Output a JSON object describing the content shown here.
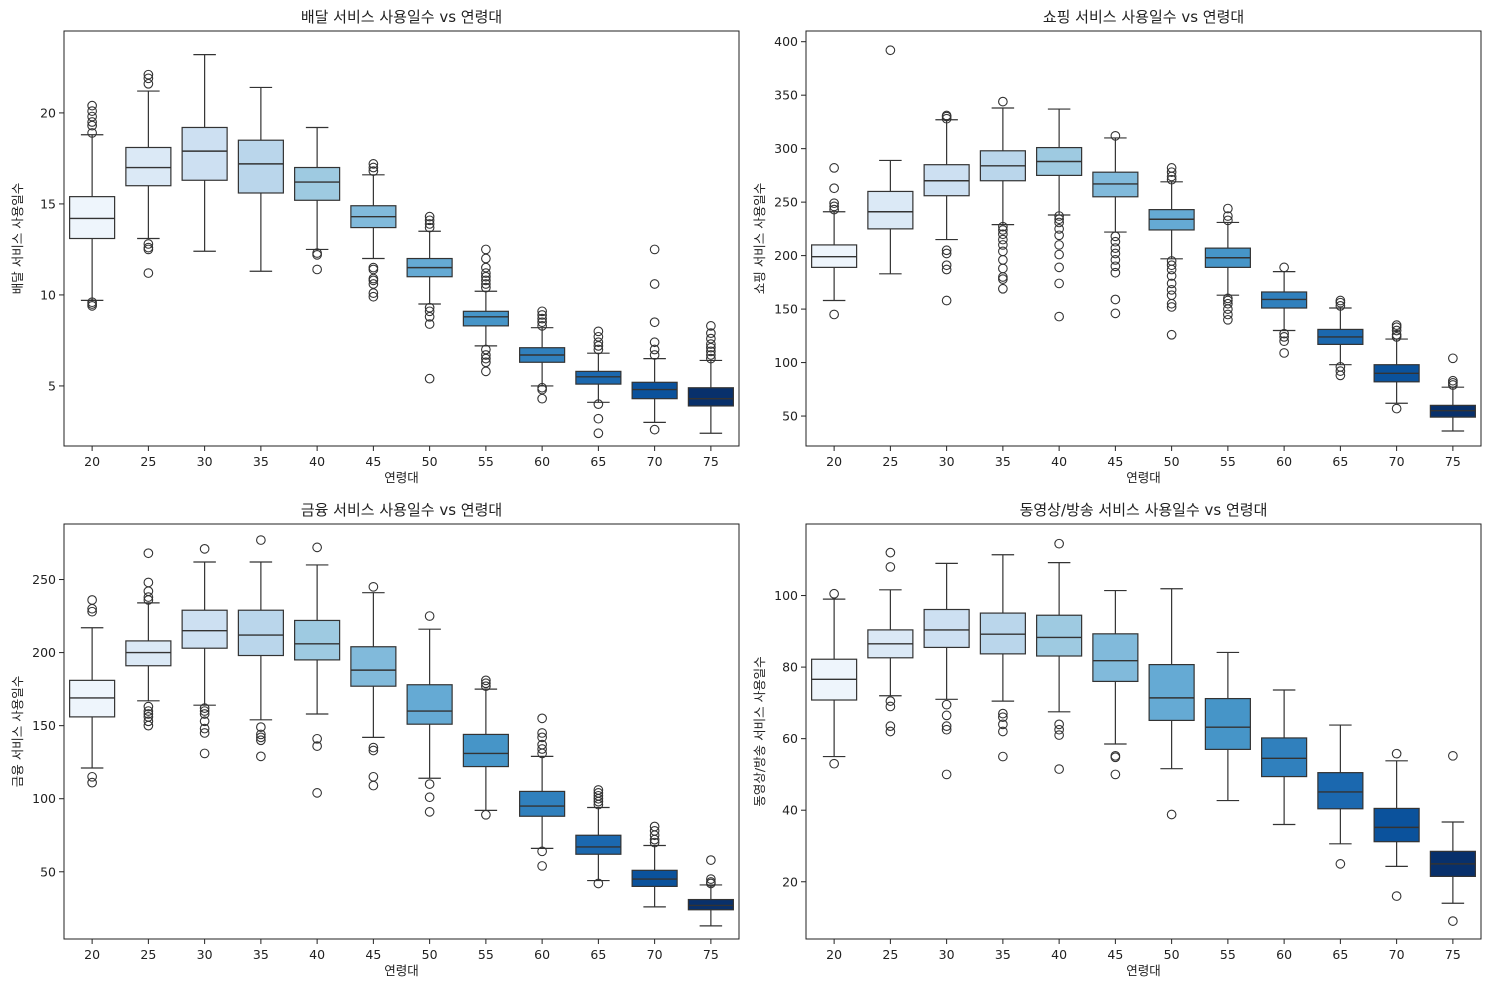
{
  "chart_data": [
    {
      "type": "box",
      "title": "배달 서비스 사용일수 vs 연령대",
      "xlabel": "연령대",
      "ylabel": "배달 서비스 사용일수",
      "ylim": [
        1.7,
        24.5
      ],
      "yticks": [
        5,
        10,
        15,
        20
      ],
      "categories": [
        "20",
        "25",
        "30",
        "35",
        "40",
        "45",
        "50",
        "55",
        "60",
        "65",
        "70",
        "75"
      ],
      "boxes": [
        {
          "q1": 13.1,
          "median": 14.2,
          "q3": 15.4,
          "wlo": 9.7,
          "whi": 18.8,
          "outliers": [
            9.4,
            9.5,
            9.6,
            18.9,
            19.3,
            19.5,
            19.8,
            20.1,
            20.4
          ]
        },
        {
          "q1": 16.0,
          "median": 17.0,
          "q3": 18.1,
          "wlo": 13.1,
          "whi": 21.2,
          "outliers": [
            11.2,
            12.5,
            12.6,
            12.8,
            21.6,
            21.9,
            22.1
          ]
        },
        {
          "q1": 16.3,
          "median": 17.9,
          "q3": 19.2,
          "wlo": 12.4,
          "whi": 23.2,
          "outliers": []
        },
        {
          "q1": 15.6,
          "median": 17.2,
          "q3": 18.5,
          "wlo": 11.3,
          "whi": 21.4,
          "outliers": []
        },
        {
          "q1": 15.2,
          "median": 16.2,
          "q3": 17.0,
          "wlo": 12.5,
          "whi": 19.2,
          "outliers": [
            11.4,
            12.2,
            12.3
          ]
        },
        {
          "q1": 13.7,
          "median": 14.3,
          "q3": 14.9,
          "wlo": 12.0,
          "whi": 16.6,
          "outliers": [
            9.9,
            10.1,
            10.6,
            10.8,
            10.9,
            11.4,
            11.5,
            16.8,
            17.0,
            17.2
          ]
        },
        {
          "q1": 11.0,
          "median": 11.5,
          "q3": 12.0,
          "wlo": 9.5,
          "whi": 13.5,
          "outliers": [
            5.4,
            8.4,
            8.8,
            9.1,
            9.3,
            13.7,
            13.9,
            14.1,
            14.3
          ]
        },
        {
          "q1": 8.3,
          "median": 8.8,
          "q3": 9.1,
          "wlo": 7.2,
          "whi": 10.2,
          "outliers": [
            5.8,
            6.3,
            6.5,
            6.7,
            7.0,
            10.4,
            10.6,
            10.8,
            11.0,
            11.2,
            11.5,
            12.0,
            12.5
          ]
        },
        {
          "q1": 6.3,
          "median": 6.7,
          "q3": 7.1,
          "wlo": 5.0,
          "whi": 8.2,
          "outliers": [
            4.3,
            4.8,
            4.9,
            8.3,
            8.5,
            8.7,
            8.9,
            9.1
          ]
        },
        {
          "q1": 5.1,
          "median": 5.5,
          "q3": 5.8,
          "wlo": 4.1,
          "whi": 6.8,
          "outliers": [
            2.4,
            3.2,
            4.0,
            7.0,
            7.2,
            7.4,
            7.7,
            8.0
          ]
        },
        {
          "q1": 4.3,
          "median": 4.8,
          "q3": 5.2,
          "wlo": 3.0,
          "whi": 6.5,
          "outliers": [
            2.6,
            6.7,
            7.0,
            7.4,
            8.5,
            10.6,
            12.5
          ]
        },
        {
          "q1": 3.9,
          "median": 4.3,
          "q3": 4.9,
          "wlo": 2.4,
          "whi": 6.4,
          "outliers": [
            6.5,
            6.7,
            6.9,
            7.1,
            7.3,
            7.6,
            7.9,
            8.3
          ]
        }
      ]
    },
    {
      "type": "box",
      "title": "쇼핑 서비스 사용일수 vs 연령대",
      "xlabel": "연령대",
      "ylabel": "쇼핑 서비스 사용일수",
      "ylim": [
        22,
        410
      ],
      "yticks": [
        50,
        100,
        150,
        200,
        250,
        300,
        350,
        400
      ],
      "categories": [
        "20",
        "25",
        "30",
        "35",
        "40",
        "45",
        "50",
        "55",
        "60",
        "65",
        "70",
        "75"
      ],
      "boxes": [
        {
          "q1": 189,
          "median": 199,
          "q3": 210,
          "wlo": 158,
          "whi": 241,
          "outliers": [
            145,
            243,
            246,
            249,
            263,
            282
          ]
        },
        {
          "q1": 225,
          "median": 241,
          "q3": 260,
          "wlo": 183,
          "whi": 289,
          "outliers": [
            392
          ]
        },
        {
          "q1": 256,
          "median": 270,
          "q3": 285,
          "wlo": 215,
          "whi": 327,
          "outliers": [
            158,
            187,
            191,
            202,
            205,
            328,
            330,
            331
          ]
        },
        {
          "q1": 270,
          "median": 284,
          "q3": 298,
          "wlo": 229,
          "whi": 338,
          "outliers": [
            169,
            178,
            180,
            188,
            196,
            204,
            210,
            215,
            220,
            224,
            227,
            344
          ]
        },
        {
          "q1": 275,
          "median": 288,
          "q3": 301,
          "wlo": 238,
          "whi": 337,
          "outliers": [
            143,
            174,
            189,
            201,
            210,
            219,
            225,
            231,
            234,
            237
          ]
        },
        {
          "q1": 255,
          "median": 267,
          "q3": 278,
          "wlo": 222,
          "whi": 310,
          "outliers": [
            146,
            159,
            184,
            190,
            196,
            202,
            207,
            213,
            218,
            312
          ]
        },
        {
          "q1": 224,
          "median": 234,
          "q3": 243,
          "wlo": 197,
          "whi": 269,
          "outliers": [
            126,
            152,
            155,
            163,
            168,
            174,
            181,
            187,
            191,
            195,
            271,
            274,
            278,
            282
          ]
        },
        {
          "q1": 189,
          "median": 198,
          "q3": 207,
          "wlo": 163,
          "whi": 231,
          "outliers": [
            140,
            145,
            150,
            155,
            158,
            160,
            233,
            237,
            244
          ]
        },
        {
          "q1": 151,
          "median": 159,
          "q3": 166,
          "wlo": 130,
          "whi": 185,
          "outliers": [
            109,
            120,
            124,
            127,
            189
          ]
        },
        {
          "q1": 117,
          "median": 124,
          "q3": 131,
          "wlo": 98,
          "whi": 151,
          "outliers": [
            88,
            92,
            96,
            153,
            156,
            158
          ]
        },
        {
          "q1": 82,
          "median": 90,
          "q3": 98,
          "wlo": 62,
          "whi": 122,
          "outliers": [
            57,
            124,
            126,
            130,
            133,
            135
          ]
        },
        {
          "q1": 49,
          "median": 55,
          "q3": 60,
          "wlo": 36,
          "whi": 77,
          "outliers": [
            79,
            81,
            83,
            104
          ]
        }
      ]
    },
    {
      "type": "box",
      "title": "금융 서비스 사용일수 vs 연령대",
      "xlabel": "연령대",
      "ylabel": "금융 서비스 사용일수",
      "ylim": [
        4,
        288
      ],
      "yticks": [
        50,
        100,
        150,
        200,
        250
      ],
      "categories": [
        "20",
        "25",
        "30",
        "35",
        "40",
        "45",
        "50",
        "55",
        "60",
        "65",
        "70",
        "75"
      ],
      "boxes": [
        {
          "q1": 156,
          "median": 169,
          "q3": 181,
          "wlo": 121,
          "whi": 217,
          "outliers": [
            111,
            115,
            228,
            230,
            236
          ]
        },
        {
          "q1": 191,
          "median": 200,
          "q3": 208,
          "wlo": 167,
          "whi": 234,
          "outliers": [
            150,
            153,
            156,
            158,
            160,
            163,
            236,
            238,
            242,
            248,
            268
          ]
        },
        {
          "q1": 203,
          "median": 215,
          "q3": 229,
          "wlo": 164,
          "whi": 262,
          "outliers": [
            131,
            145,
            148,
            153,
            158,
            160,
            162,
            271
          ]
        },
        {
          "q1": 198,
          "median": 212,
          "q3": 229,
          "wlo": 154,
          "whi": 262,
          "outliers": [
            129,
            140,
            142,
            144,
            149,
            277
          ]
        },
        {
          "q1": 195,
          "median": 206,
          "q3": 222,
          "wlo": 158,
          "whi": 260,
          "outliers": [
            104,
            136,
            141,
            272
          ]
        },
        {
          "q1": 177,
          "median": 188,
          "q3": 204,
          "wlo": 142,
          "whi": 241,
          "outliers": [
            109,
            115,
            133,
            135,
            245
          ]
        },
        {
          "q1": 151,
          "median": 160,
          "q3": 178,
          "wlo": 114,
          "whi": 216,
          "outliers": [
            91,
            101,
            110,
            225
          ]
        },
        {
          "q1": 122,
          "median": 131,
          "q3": 144,
          "wlo": 92,
          "whi": 175,
          "outliers": [
            89,
            177,
            179,
            181
          ]
        },
        {
          "q1": 88,
          "median": 95,
          "q3": 105,
          "wlo": 66,
          "whi": 129,
          "outliers": [
            54,
            64,
            131,
            134,
            137,
            142,
            145,
            155
          ]
        },
        {
          "q1": 62,
          "median": 67,
          "q3": 75,
          "wlo": 44,
          "whi": 94,
          "outliers": [
            42,
            96,
            98,
            100,
            102,
            104,
            106
          ]
        },
        {
          "q1": 40,
          "median": 45,
          "q3": 51,
          "wlo": 26,
          "whi": 68,
          "outliers": [
            70,
            72,
            75,
            78,
            81
          ]
        },
        {
          "q1": 24,
          "median": 27,
          "q3": 31,
          "wlo": 13,
          "whi": 41,
          "outliers": [
            42,
            43,
            45,
            58
          ]
        }
      ]
    },
    {
      "type": "box",
      "title": "동영상/방송 서비스 사용일수 vs 연령대",
      "xlabel": "연령대",
      "ylabel": "동영상/방송 서비스 사용일수",
      "ylim": [
        4,
        120
      ],
      "yticks": [
        20,
        40,
        60,
        80,
        100
      ],
      "categories": [
        "20",
        "25",
        "30",
        "35",
        "40",
        "45",
        "50",
        "55",
        "60",
        "65",
        "70",
        "75"
      ],
      "boxes": [
        {
          "q1": 70.8,
          "median": 76.6,
          "q3": 82.2,
          "wlo": 55,
          "whi": 99,
          "outliers": [
            53,
            100.5
          ]
        },
        {
          "q1": 82.6,
          "median": 86.5,
          "q3": 90.4,
          "wlo": 72,
          "whi": 101.6,
          "outliers": [
            62,
            63.5,
            69,
            70.5,
            108,
            112
          ]
        },
        {
          "q1": 85.5,
          "median": 90.4,
          "q3": 96.1,
          "wlo": 71,
          "whi": 109,
          "outliers": [
            50,
            62.5,
            63.5,
            66.5,
            69.5
          ]
        },
        {
          "q1": 83.7,
          "median": 89.2,
          "q3": 95.1,
          "wlo": 70.5,
          "whi": 111.4,
          "outliers": [
            55,
            62,
            64,
            66,
            67
          ]
        },
        {
          "q1": 83.1,
          "median": 88.3,
          "q3": 94.5,
          "wlo": 67.5,
          "whi": 109.2,
          "outliers": [
            51.5,
            61,
            62.5,
            64,
            114.5
          ]
        },
        {
          "q1": 76,
          "median": 81.8,
          "q3": 89.3,
          "wlo": 58.5,
          "whi": 101.4,
          "outliers": [
            50,
            54.8,
            55.2
          ]
        },
        {
          "q1": 65.1,
          "median": 71.4,
          "q3": 80.7,
          "wlo": 51.6,
          "whi": 101.9,
          "outliers": [
            38.8
          ]
        },
        {
          "q1": 57,
          "median": 63.2,
          "q3": 71.2,
          "wlo": 42.7,
          "whi": 84.1,
          "outliers": []
        },
        {
          "q1": 49.4,
          "median": 54.5,
          "q3": 60.2,
          "wlo": 36,
          "whi": 73.6,
          "outliers": []
        },
        {
          "q1": 40.4,
          "median": 45.1,
          "q3": 50.5,
          "wlo": 30.6,
          "whi": 63.8,
          "outliers": [
            25
          ]
        },
        {
          "q1": 31.2,
          "median": 35.2,
          "q3": 40.5,
          "wlo": 24.3,
          "whi": 53.8,
          "outliers": [
            16,
            55.8
          ]
        },
        {
          "q1": 21.5,
          "median": 25,
          "q3": 28.5,
          "wlo": 14,
          "whi": 36.7,
          "outliers": [
            9,
            55.2
          ]
        }
      ]
    }
  ],
  "colors": [
    "#eef5fc",
    "#dbe9f6",
    "#cde0f2",
    "#bad6eb",
    "#9ecae1",
    "#81badb",
    "#65aad4",
    "#4695c8",
    "#3080bd",
    "#1b68af",
    "#0b529c",
    "#08306b"
  ]
}
